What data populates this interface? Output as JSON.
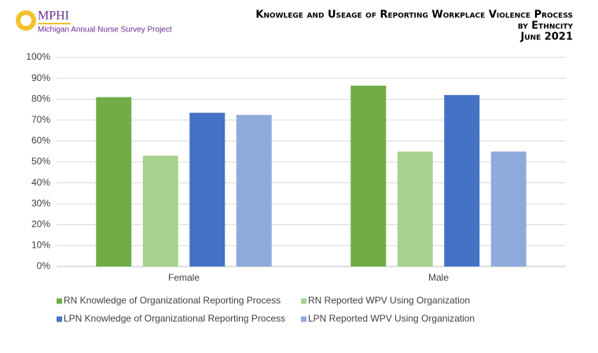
{
  "header": {
    "logo": "MPHI",
    "project": "Michigan Annual Nurse Survey Project"
  },
  "chart_data": {
    "type": "bar",
    "title": "Knowlege and Useage of Reporting Workplace Violence Process",
    "subtitle": "by Ethncity",
    "date": "June 2021",
    "categories": [
      "Female",
      "Male"
    ],
    "series": [
      {
        "name": "RN Knowledge of Organizational Reporting Process",
        "color": "#70ad47",
        "values": [
          81,
          86.5
        ]
      },
      {
        "name": "RN Reported WPV Using Organization",
        "color": "#a9d18e",
        "values": [
          53,
          55
        ]
      },
      {
        "name": "LPN Knowledge of Organizational Reporting Process",
        "color": "#4472c4",
        "values": [
          73.5,
          82
        ]
      },
      {
        "name": "LPN Reported WPV Using Organization",
        "color": "#8faadc",
        "values": [
          72.5,
          55
        ]
      }
    ],
    "ylim": [
      0,
      100
    ],
    "yticks": [
      {
        "value": 0,
        "label": "0%"
      },
      {
        "value": 10,
        "label": "10%"
      },
      {
        "value": 20,
        "label": "20%"
      },
      {
        "value": 30,
        "label": "30%"
      },
      {
        "value": 40,
        "label": "40%"
      },
      {
        "value": 50,
        "label": "50%"
      },
      {
        "value": 60,
        "label": "60%"
      },
      {
        "value": 70,
        "label": "70%"
      },
      {
        "value": 80,
        "label": "80%"
      },
      {
        "value": 90,
        "label": "90%"
      },
      {
        "value": 100,
        "label": "100%"
      }
    ],
    "grid": true,
    "legend": "bottom"
  }
}
